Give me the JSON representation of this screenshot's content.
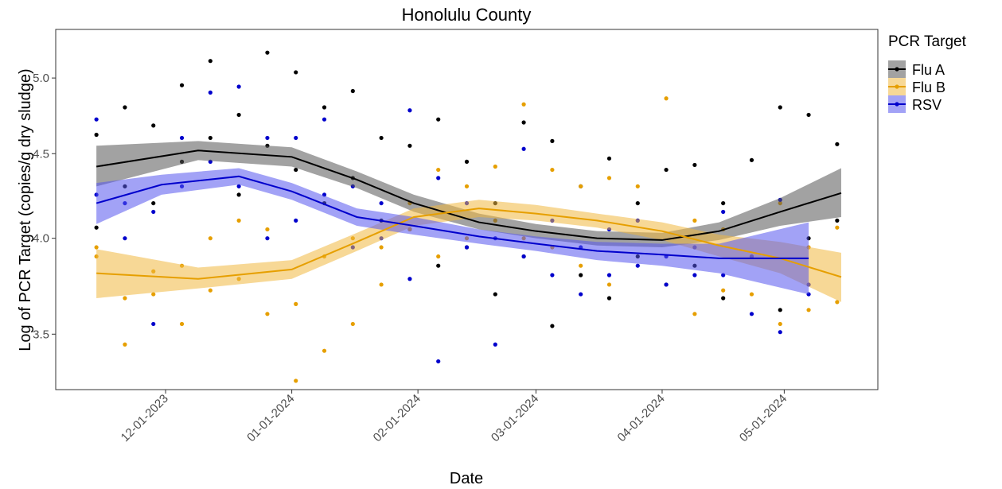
{
  "chart_data": {
    "type": "scatter_smooth",
    "title": "Honolulu County",
    "x_label": "Date",
    "y_label": "Log of PCR Target (copies/g dry sludge)",
    "legend_title": "PCR Target",
    "legend": "right",
    "grid": false,
    "y_log": true,
    "xlim": [
      "2023-11-04",
      "2024-05-24"
    ],
    "xticks": [
      {
        "value": "2023-12-01",
        "label": "12-01-2023"
      },
      {
        "value": "2024-01-01",
        "label": "01-01-2024"
      },
      {
        "value": "2024-02-01",
        "label": "02-01-2024"
      },
      {
        "value": "2024-03-01",
        "label": "03-01-2024"
      },
      {
        "value": "2024-04-01",
        "label": "04-01-2024"
      },
      {
        "value": "2024-05-01",
        "label": "05-01-2024"
      }
    ],
    "ylim": [
      3.24,
      5.35
    ],
    "yticks": [
      3.5,
      {
        "value": 4,
        "label": "4.0"
      },
      4.5,
      {
        "value": 5,
        "label": "5.0"
      }
    ],
    "series": [
      {
        "name": "Flu A",
        "color": "#000000",
        "band_color": "#555555",
        "x": [
          "2023-11-14",
          "2023-11-14",
          "2023-11-21",
          "2023-11-21",
          "2023-11-28",
          "2023-11-28",
          "2023-12-05",
          "2023-12-05",
          "2023-12-12",
          "2023-12-12",
          "2023-12-19",
          "2023-12-19",
          "2023-12-26",
          "2023-12-26",
          "2024-01-02",
          "2024-01-02",
          "2024-01-09",
          "2024-01-09",
          "2024-01-16",
          "2024-01-16",
          "2024-01-23",
          "2024-01-23",
          "2024-01-30",
          "2024-01-30",
          "2024-02-06",
          "2024-02-06",
          "2024-02-13",
          "2024-02-13",
          "2024-02-20",
          "2024-02-20",
          "2024-02-27",
          "2024-02-27",
          "2024-03-05",
          "2024-03-05",
          "2024-03-12",
          "2024-03-12",
          "2024-03-19",
          "2024-03-19",
          "2024-03-26",
          "2024-03-26",
          "2024-04-02",
          "2024-04-02",
          "2024-04-09",
          "2024-04-09",
          "2024-04-16",
          "2024-04-16",
          "2024-04-23",
          "2024-04-23",
          "2024-04-30",
          "2024-04-30",
          "2024-05-07",
          "2024-05-07",
          "2024-05-14",
          "2024-05-14"
        ],
        "values": [
          4.62,
          4.06,
          4.8,
          4.3,
          4.68,
          4.2,
          4.95,
          4.45,
          5.12,
          4.6,
          4.75,
          4.25,
          5.18,
          4.55,
          5.04,
          4.4,
          4.8,
          4.2,
          4.91,
          4.35,
          4.6,
          4.1,
          4.55,
          4.05,
          4.72,
          3.85,
          4.45,
          3.95,
          4.2,
          3.7,
          4.7,
          3.9,
          4.58,
          3.54,
          4.3,
          3.8,
          4.47,
          3.68,
          4.2,
          3.9,
          4.4,
          3.75,
          4.43,
          3.85,
          4.2,
          3.68,
          4.46,
          3.9,
          4.8,
          3.62,
          4.75,
          4.0,
          4.56,
          4.1
        ],
        "smooth": {
          "x": [
            "2023-11-14",
            "2023-12-09",
            "2024-01-01",
            "2024-01-17",
            "2024-01-31",
            "2024-02-16",
            "2024-03-01",
            "2024-03-16",
            "2024-04-01",
            "2024-04-15",
            "2024-04-30",
            "2024-05-15"
          ],
          "values": [
            4.42,
            4.52,
            4.48,
            4.34,
            4.2,
            4.09,
            4.04,
            4.0,
            3.99,
            4.04,
            4.15,
            4.26
          ],
          "lower": [
            4.3,
            4.46,
            4.42,
            4.29,
            4.15,
            4.05,
            4.0,
            3.96,
            3.95,
            3.99,
            4.07,
            4.12
          ],
          "upper": [
            4.55,
            4.58,
            4.54,
            4.39,
            4.25,
            4.14,
            4.08,
            4.04,
            4.03,
            4.09,
            4.23,
            4.41
          ]
        }
      },
      {
        "name": "Flu B",
        "color": "#E69F00",
        "band_color": "#F0B840",
        "x": [
          "2023-11-14",
          "2023-11-14",
          "2023-11-21",
          "2023-11-21",
          "2023-11-28",
          "2023-11-28",
          "2023-12-05",
          "2023-12-05",
          "2023-12-12",
          "2023-12-12",
          "2023-12-19",
          "2023-12-19",
          "2023-12-26",
          "2023-12-26",
          "2024-01-02",
          "2024-01-02",
          "2024-01-09",
          "2024-01-09",
          "2024-01-16",
          "2024-01-16",
          "2024-01-23",
          "2024-01-23",
          "2024-01-30",
          "2024-01-30",
          "2024-02-06",
          "2024-02-06",
          "2024-02-13",
          "2024-02-13",
          "2024-02-20",
          "2024-02-20",
          "2024-02-27",
          "2024-02-27",
          "2024-03-05",
          "2024-03-05",
          "2024-03-12",
          "2024-03-12",
          "2024-03-19",
          "2024-03-19",
          "2024-03-26",
          "2024-03-26",
          "2024-04-02",
          "2024-04-02",
          "2024-04-09",
          "2024-04-09",
          "2024-04-16",
          "2024-04-16",
          "2024-04-23",
          "2024-04-23",
          "2024-04-30",
          "2024-04-30",
          "2024-05-07",
          "2024-05-07",
          "2024-05-14",
          "2024-05-14"
        ],
        "values": [
          3.9,
          3.95,
          3.45,
          3.68,
          3.82,
          3.7,
          3.55,
          3.85,
          4.0,
          3.72,
          4.1,
          3.78,
          4.05,
          3.6,
          3.28,
          3.65,
          3.42,
          3.9,
          4.0,
          3.55,
          3.75,
          3.95,
          4.05,
          4.2,
          4.4,
          3.9,
          4.3,
          4.0,
          4.42,
          4.1,
          4.82,
          4.0,
          4.4,
          3.95,
          4.3,
          3.85,
          4.35,
          3.75,
          4.1,
          4.3,
          4.86,
          3.9,
          3.6,
          4.1,
          3.72,
          4.05,
          3.9,
          3.7,
          4.2,
          3.55,
          3.95,
          3.62,
          3.66,
          4.06
        ],
        "smooth": {
          "x": [
            "2023-11-14",
            "2023-12-09",
            "2024-01-01",
            "2024-01-17",
            "2024-01-31",
            "2024-02-16",
            "2024-03-01",
            "2024-03-16",
            "2024-04-01",
            "2024-04-15",
            "2024-04-30",
            "2024-05-15"
          ],
          "values": [
            3.81,
            3.78,
            3.83,
            3.98,
            4.12,
            4.17,
            4.14,
            4.1,
            4.04,
            3.96,
            3.89,
            3.79
          ],
          "lower": [
            3.68,
            3.73,
            3.78,
            3.93,
            4.07,
            4.12,
            4.1,
            4.06,
            3.99,
            3.9,
            3.81,
            3.66
          ],
          "upper": [
            3.94,
            3.84,
            3.88,
            4.03,
            4.17,
            4.22,
            4.19,
            4.14,
            4.09,
            4.02,
            3.98,
            3.92
          ]
        }
      },
      {
        "name": "RSV",
        "color": "#0000CC",
        "band_color": "#5555EE",
        "x": [
          "2023-11-14",
          "2023-11-14",
          "2023-11-21",
          "2023-11-21",
          "2023-11-28",
          "2023-11-28",
          "2023-12-05",
          "2023-12-05",
          "2023-12-12",
          "2023-12-12",
          "2023-12-19",
          "2023-12-19",
          "2023-12-26",
          "2023-12-26",
          "2024-01-02",
          "2024-01-02",
          "2024-01-09",
          "2024-01-09",
          "2024-01-16",
          "2024-01-16",
          "2024-01-23",
          "2024-01-23",
          "2024-01-30",
          "2024-01-30",
          "2024-02-06",
          "2024-02-06",
          "2024-02-13",
          "2024-02-13",
          "2024-02-20",
          "2024-02-20",
          "2024-02-27",
          "2024-02-27",
          "2024-03-05",
          "2024-03-05",
          "2024-03-12",
          "2024-03-12",
          "2024-03-19",
          "2024-03-19",
          "2024-03-26",
          "2024-03-26",
          "2024-04-02",
          "2024-04-02",
          "2024-04-09",
          "2024-04-09",
          "2024-04-16",
          "2024-04-16",
          "2024-04-23",
          "2024-04-23",
          "2024-04-30",
          "2024-04-30",
          "2024-05-07",
          "2024-05-07"
        ],
        "values": [
          4.72,
          4.25,
          4.0,
          4.2,
          4.15,
          3.55,
          4.6,
          4.3,
          4.9,
          4.45,
          4.94,
          4.3,
          4.6,
          4.0,
          4.6,
          4.1,
          4.72,
          4.25,
          4.3,
          3.95,
          4.2,
          4.0,
          4.78,
          3.78,
          4.35,
          3.37,
          4.2,
          3.95,
          4.0,
          3.45,
          4.53,
          3.9,
          4.1,
          3.8,
          3.95,
          3.7,
          4.05,
          3.8,
          3.85,
          4.1,
          3.9,
          3.75,
          3.95,
          3.8,
          3.8,
          4.15,
          3.9,
          3.6,
          4.22,
          3.51,
          3.75,
          3.7
        ],
        "smooth": {
          "x": [
            "2023-11-14",
            "2023-11-30",
            "2023-12-19",
            "2024-01-01",
            "2024-01-17",
            "2024-01-31",
            "2024-02-16",
            "2024-03-01",
            "2024-03-16",
            "2024-04-01",
            "2024-04-15",
            "2024-05-07"
          ],
          "values": [
            4.2,
            4.31,
            4.36,
            4.27,
            4.12,
            4.07,
            4.01,
            3.97,
            3.93,
            3.91,
            3.89,
            3.89
          ],
          "lower": [
            4.08,
            4.25,
            4.31,
            4.22,
            4.07,
            4.02,
            3.97,
            3.93,
            3.88,
            3.85,
            3.81,
            3.7
          ],
          "upper": [
            4.32,
            4.37,
            4.41,
            4.32,
            4.17,
            4.12,
            4.05,
            4.01,
            3.98,
            3.97,
            3.97,
            4.09
          ]
        }
      }
    ]
  }
}
